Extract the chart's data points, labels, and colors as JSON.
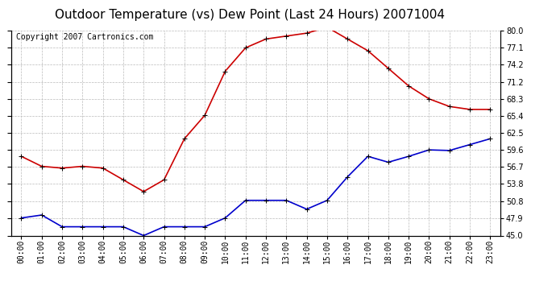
{
  "title": "Outdoor Temperature (vs) Dew Point (Last 24 Hours) 20071004",
  "copyright_text": "Copyright 2007 Cartronics.com",
  "hours": [
    "00:00",
    "01:00",
    "02:00",
    "03:00",
    "04:00",
    "05:00",
    "06:00",
    "07:00",
    "08:00",
    "09:00",
    "10:00",
    "11:00",
    "12:00",
    "13:00",
    "14:00",
    "15:00",
    "16:00",
    "17:00",
    "18:00",
    "19:00",
    "20:00",
    "21:00",
    "22:00",
    "23:00"
  ],
  "temp": [
    58.5,
    56.8,
    56.5,
    56.8,
    56.5,
    54.5,
    52.5,
    54.5,
    61.5,
    65.5,
    73.0,
    77.0,
    78.5,
    79.0,
    79.5,
    80.5,
    78.5,
    76.5,
    73.5,
    70.5,
    68.3,
    67.0,
    66.5,
    66.5
  ],
  "dew": [
    48.0,
    48.5,
    46.5,
    46.5,
    46.5,
    46.5,
    45.0,
    46.5,
    46.5,
    46.5,
    48.0,
    51.0,
    51.0,
    51.0,
    49.5,
    51.0,
    55.0,
    58.5,
    57.5,
    58.5,
    59.6,
    59.5,
    60.5,
    61.5
  ],
  "temp_color": "#cc0000",
  "dew_color": "#0000cc",
  "bg_color": "#ffffff",
  "plot_bg_color": "#ffffff",
  "grid_color": "#bbbbbb",
  "ylim": [
    45.0,
    80.0
  ],
  "yticks": [
    45.0,
    47.9,
    50.8,
    53.8,
    56.7,
    59.6,
    62.5,
    65.4,
    68.3,
    71.2,
    74.2,
    77.1,
    80.0
  ],
  "ytick_labels": [
    "45.0",
    "47.9",
    "50.8",
    "53.8",
    "56.7",
    "59.6",
    "62.5",
    "65.4",
    "68.3",
    "71.2",
    "74.2",
    "77.1",
    "80.0"
  ],
  "title_fontsize": 11,
  "tick_fontsize": 7,
  "copyright_fontsize": 7,
  "marker": "+",
  "marker_size": 5,
  "line_width": 1.2
}
